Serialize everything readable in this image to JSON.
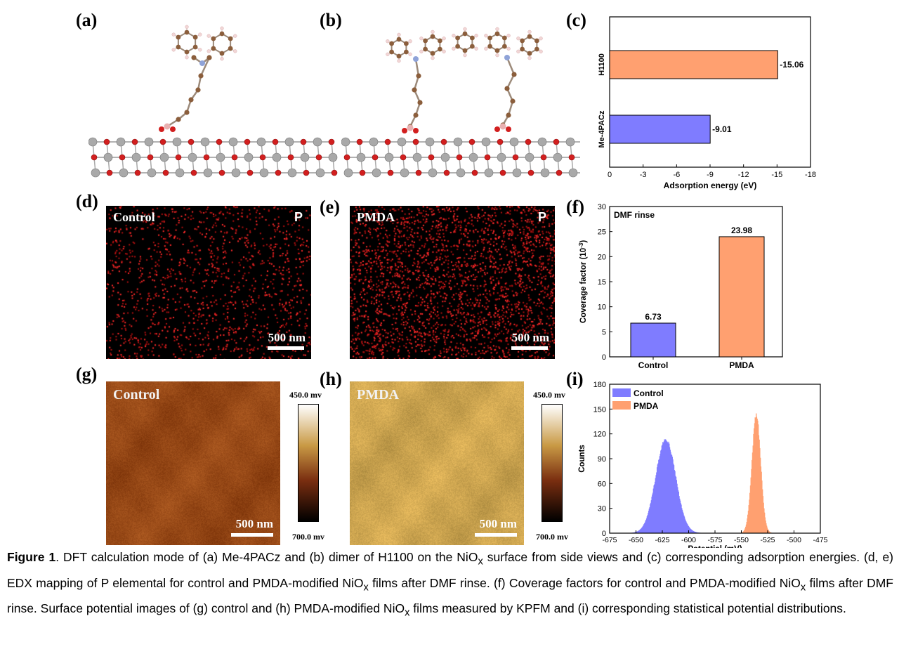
{
  "panels": {
    "a": "(a)",
    "b": "(b)",
    "c": "(c)",
    "d": "(d)",
    "e": "(e)",
    "f": "(f)",
    "g": "(g)",
    "h": "(h)",
    "i": "(i)"
  },
  "colors": {
    "blue": "#7f7cff",
    "orange": "#ffa070",
    "oxygen": "#d21f1f",
    "nickel": "#a9a9a9",
    "carbon": "#8b5e3c",
    "nitrogen": "#8fa3d8",
    "hydrogen": "#f2d6d6"
  },
  "edx": {
    "d": {
      "title": "Control",
      "element": "P",
      "scale": "500 nm"
    },
    "e": {
      "title": "PMDA",
      "element": "P",
      "scale": "500 nm"
    }
  },
  "kpfm": {
    "g": {
      "title": "Control",
      "scale": "500 nm",
      "cbar_top": "450.0 mv",
      "cbar_bottom": "700.0 mv"
    },
    "h": {
      "title": "PMDA",
      "scale": "500 nm",
      "cbar_top": "450.0 mv",
      "cbar_bottom": "700.0 mv"
    }
  },
  "chart_data": [
    {
      "id": "c",
      "type": "bar",
      "orientation": "horizontal",
      "categories": [
        "H1100",
        "Me-4PACz"
      ],
      "values": [
        -15.06,
        -9.01
      ],
      "value_labels": [
        "-15.06",
        "-9.01"
      ],
      "xlabel": "Adsorption energy (eV)",
      "xlim": [
        0,
        -18
      ],
      "xticks": [
        "0",
        "-3",
        "-6",
        "-9",
        "-12",
        "-15",
        "-18"
      ]
    },
    {
      "id": "f",
      "type": "bar",
      "categories": [
        "Control",
        "PMDA"
      ],
      "values": [
        6.73,
        23.98
      ],
      "value_labels": [
        "6.73",
        "23.98"
      ],
      "annotation": "DMF rinse",
      "ylabel": "Coverage factor (10",
      "ylabel_sup": "-3",
      "ylabel_end": ")",
      "ylim": [
        0,
        30
      ],
      "yticks": [
        "0",
        "5",
        "10",
        "15",
        "20",
        "25",
        "30"
      ]
    },
    {
      "id": "i",
      "type": "histogram",
      "series": [
        {
          "name": "Control",
          "mean": -622,
          "sd": 9.5,
          "peak": 113
        },
        {
          "name": "PMDA",
          "mean": -536,
          "sd": 4.2,
          "peak": 142
        }
      ],
      "xlabel": "Potential (mV)",
      "ylabel": "Counts",
      "xlim": [
        -675,
        -475
      ],
      "ylim": [
        0,
        180
      ],
      "xticks": [
        "-675",
        "-650",
        "-625",
        "-600",
        "-575",
        "-550",
        "-525",
        "-500",
        "-475"
      ],
      "yticks": [
        "0",
        "30",
        "60",
        "90",
        "120",
        "150",
        "180"
      ]
    }
  ],
  "caption": {
    "label": "Figure 1",
    "t1": ". DFT calculation mode of (a) Me-4PACz and (b) dimer of H1100 on the NiO",
    "x1": "x",
    "t2": " surface from side views and (c) corresponding adsorption energies. (d, e) EDX mapping of P elemental for control and PMDA-modified NiO",
    "x2": "x",
    "t3": " films after DMF rinse. (f) Coverage factors for control and PMDA-modified NiO",
    "x3": "x",
    "t4": " films after DMF rinse. Surface potential images of (g) control and (h) PMDA-modified NiO",
    "x4": "x",
    "t5": " films measured by KPFM and (i) corresponding statistical potential distributions."
  }
}
